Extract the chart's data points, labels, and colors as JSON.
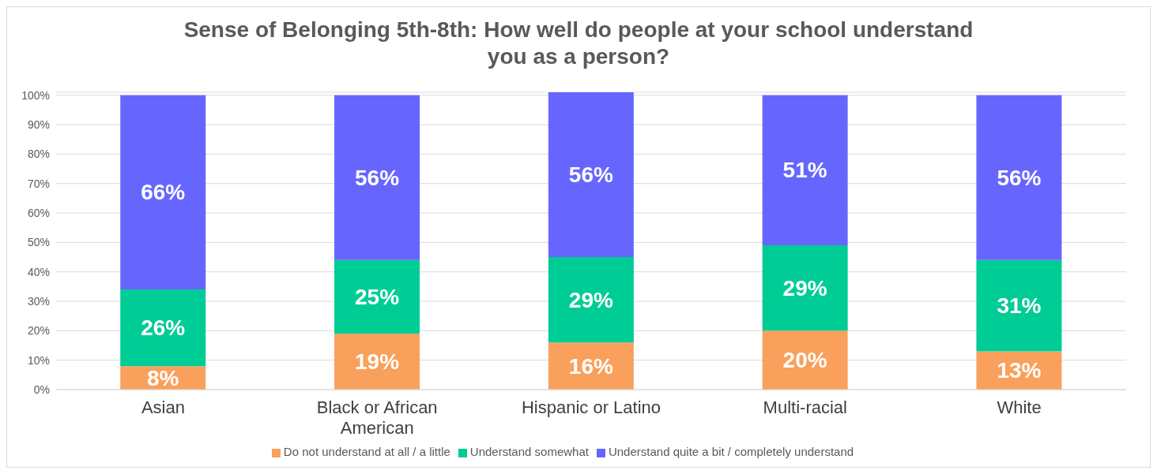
{
  "chart_data": {
    "type": "bar",
    "title": "Sense of Belonging 5th-8th: How well do people at your school understand you as a person?",
    "categories": [
      "Asian",
      "Black or African American",
      "Hispanic or Latino",
      "Multi-racial",
      "White"
    ],
    "series": [
      {
        "name": "Do not understand at all / a little",
        "color": "#f9a05c",
        "values": [
          8,
          19,
          16,
          20,
          13
        ],
        "value_labels": [
          "8%",
          "19%",
          "16%",
          "20%",
          "13%"
        ]
      },
      {
        "name": "Understand somewhat",
        "color": "#00cc96",
        "values": [
          26,
          25,
          29,
          29,
          31
        ],
        "value_labels": [
          "26%",
          "25%",
          "29%",
          "29%",
          "31%"
        ]
      },
      {
        "name": "Understand quite a bit / completely understand",
        "color": "#6666ff",
        "values": [
          66,
          56,
          56,
          51,
          56
        ],
        "value_labels": [
          "66%",
          "56%",
          "56%",
          "51%",
          "56%"
        ]
      }
    ],
    "stacked": true,
    "ylim": [
      0,
      101
    ],
    "yticks": [
      {
        "value": 0,
        "label": "0%"
      },
      {
        "value": 10,
        "label": "10%"
      },
      {
        "value": 20,
        "label": "20%"
      },
      {
        "value": 30,
        "label": "30%"
      },
      {
        "value": 40,
        "label": "40%"
      },
      {
        "value": 50,
        "label": "50%"
      },
      {
        "value": 60,
        "label": "60%"
      },
      {
        "value": 70,
        "label": "70%"
      },
      {
        "value": 80,
        "label": "80%"
      },
      {
        "value": 90,
        "label": "90%"
      },
      {
        "value": 100,
        "label": "100%"
      }
    ],
    "grid": "y",
    "legend": "bottom"
  }
}
